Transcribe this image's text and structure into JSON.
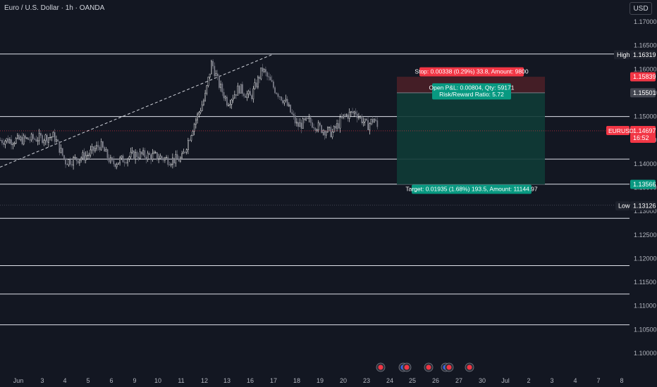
{
  "header": {
    "title": "Euro / U.S. Dollar · 1h · OANDA",
    "currency_button": "USD"
  },
  "colors": {
    "background": "#131722",
    "up_candle": "#ffffff",
    "down_candle": "#787b86",
    "stop_zone": "#4a1f27",
    "target_zone": "#0f3b36",
    "stop_label": "#f23645",
    "target_label": "#089981",
    "price_line": "#f23645"
  },
  "chart_data": {
    "type": "candlestick",
    "symbol": "EURUSD",
    "timeframe": "1h",
    "ylim": [
      1.0965,
      1.1735
    ],
    "y_ticks": [
      "1.17000",
      "1.16500",
      "1.16000",
      "1.15500",
      "1.15000",
      "1.14500",
      "1.14000",
      "1.13500",
      "1.13000",
      "1.12500",
      "1.12000",
      "1.11500",
      "1.11000",
      "1.10500",
      "1.10000"
    ],
    "x_ticks": [
      "Jun",
      "3",
      "4",
      "5",
      "6",
      "9",
      "10",
      "11",
      "12",
      "13",
      "16",
      "17",
      "18",
      "19",
      "20",
      "23",
      "24",
      "25",
      "26",
      "27",
      "30",
      "Jul",
      "2",
      "3",
      "4",
      "7",
      "8"
    ],
    "close_path": [
      [
        "Jun",
        1.145
      ],
      [
        "3",
        1.1455
      ],
      [
        "3.5",
        1.1458
      ],
      [
        "4",
        1.1405
      ],
      [
        "4.5",
        1.141
      ],
      [
        "5",
        1.142
      ],
      [
        "5.5",
        1.144
      ],
      [
        "6",
        1.14
      ],
      [
        "9",
        1.142
      ],
      [
        "10",
        1.1415
      ],
      [
        "10.5",
        1.1408
      ],
      [
        "11",
        1.141
      ],
      [
        "11.5",
        1.148
      ],
      [
        "12",
        1.154
      ],
      [
        "12.3",
        1.1615
      ],
      [
        "12.6",
        1.157
      ],
      [
        "13",
        1.153
      ],
      [
        "13.5",
        1.156
      ],
      [
        "16",
        1.154
      ],
      [
        "16.5",
        1.16
      ],
      [
        "17",
        1.156
      ],
      [
        "17.5",
        1.153
      ],
      [
        "18",
        1.148
      ],
      [
        "18.5",
        1.149
      ],
      [
        "19",
        1.1475
      ],
      [
        "19.5",
        1.1465
      ],
      [
        "20",
        1.15
      ],
      [
        "20.5",
        1.151
      ],
      [
        "23",
        1.148
      ],
      [
        "23.3",
        1.1495
      ],
      [
        "23.5",
        1.147
      ]
    ],
    "horizontal_levels": [
      1.1632,
      1.15,
      1.141,
      1.1357,
      1.1285,
      1.1185,
      1.1125,
      1.106
    ],
    "trendline": {
      "from": [
        "Jun",
        1.1393
      ],
      "to": [
        "17",
        1.1632
      ]
    },
    "markers": {
      "high": {
        "label": "High",
        "value": "1.16319"
      },
      "low": {
        "label": "Low",
        "value": "1.13126"
      },
      "stop": {
        "value": "1.15839"
      },
      "entry": {
        "value": "1.15501"
      },
      "target": {
        "value": "1.13566"
      },
      "last": {
        "symbol": "EURUSD",
        "value": "1.14697",
        "countdown": "16:52"
      }
    },
    "position": {
      "side": "short",
      "entry": 1.15501,
      "stop": 1.15839,
      "target": 1.13566,
      "stop_text": "Stop: 0.00338 (0.29%) 33.8, Amount: 9800",
      "target_text": "Target: 0.01935 (1.68%) 193.5, Amount: 11144.97",
      "pnl_text": "Open P&L: 0.00804, Qty: 59171",
      "ratio_text": "Risk/Reward Ratio: 5.72"
    },
    "event_flags": [
      "23",
      "24",
      "26",
      "27",
      "28"
    ]
  }
}
